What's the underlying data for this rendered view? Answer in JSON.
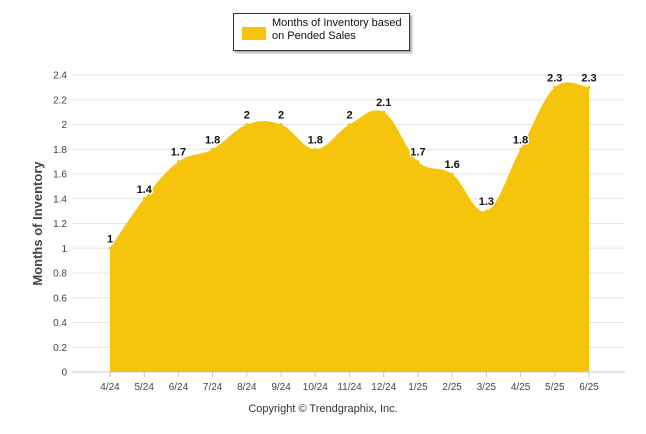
{
  "chart_data": {
    "type": "area",
    "categories": [
      "4/24",
      "5/24",
      "6/24",
      "7/24",
      "8/24",
      "9/24",
      "10/24",
      "11/24",
      "12/24",
      "1/25",
      "2/25",
      "3/25",
      "4/25",
      "5/25",
      "6/25"
    ],
    "series": [
      {
        "name": "Months of Inventory based on Pended Sales",
        "values": [
          1,
          1.4,
          1.7,
          1.8,
          2,
          2,
          1.8,
          2,
          2.1,
          1.7,
          1.6,
          1.3,
          1.8,
          2.3,
          2.3
        ]
      }
    ],
    "ylabel": "Months of Inventory",
    "ylim": [
      0,
      2.4
    ],
    "yticks": [
      "0",
      "0.2",
      "0.4",
      "0.6",
      "0.8",
      "1",
      "1.2",
      "1.4",
      "1.6",
      "1.8",
      "2",
      "2.2",
      "2.4"
    ],
    "grid": true,
    "legend": "top-center",
    "colors": {
      "fill": "#F5C40B",
      "grid": "#e6e6e6"
    }
  },
  "legend": {
    "label": "Months of Inventory based on Pended Sales"
  },
  "footer": {
    "copyright": "Copyright © Trendgraphix, Inc."
  }
}
